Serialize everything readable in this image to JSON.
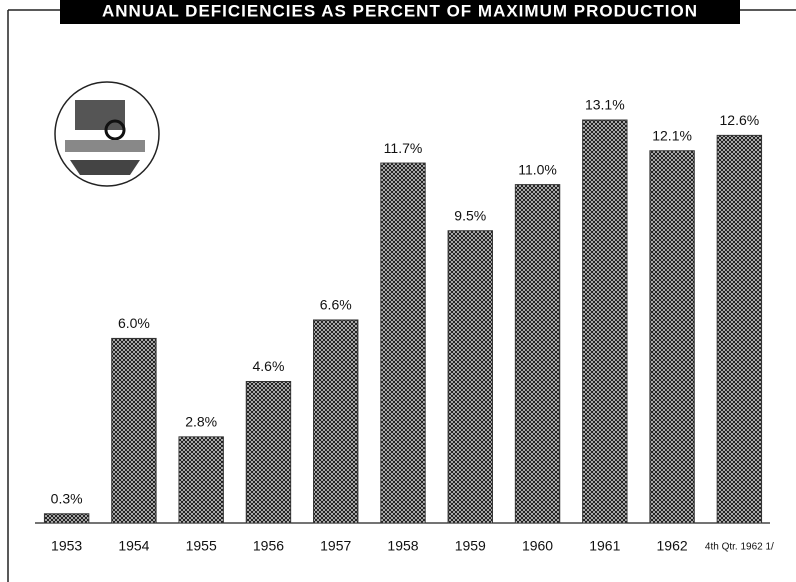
{
  "chart_data": {
    "type": "bar",
    "title": "ANNUAL DEFICIENCIES AS PERCENT OF MAXIMUM PRODUCTION",
    "categories": [
      "1953",
      "1954",
      "1955",
      "1956",
      "1957",
      "1958",
      "1959",
      "1960",
      "1961",
      "1962",
      "4th Qtr. 1962 1/"
    ],
    "values": [
      0.3,
      6.0,
      2.8,
      4.6,
      6.6,
      11.7,
      9.5,
      11.0,
      13.1,
      12.1,
      12.6
    ],
    "value_labels": [
      "0.3%",
      "6.0%",
      "2.8%",
      "4.6%",
      "6.6%",
      "11.7%",
      "9.5%",
      "11.0%",
      "13.1%",
      "12.1%",
      "12.6%"
    ],
    "color": "#333333"
  }
}
